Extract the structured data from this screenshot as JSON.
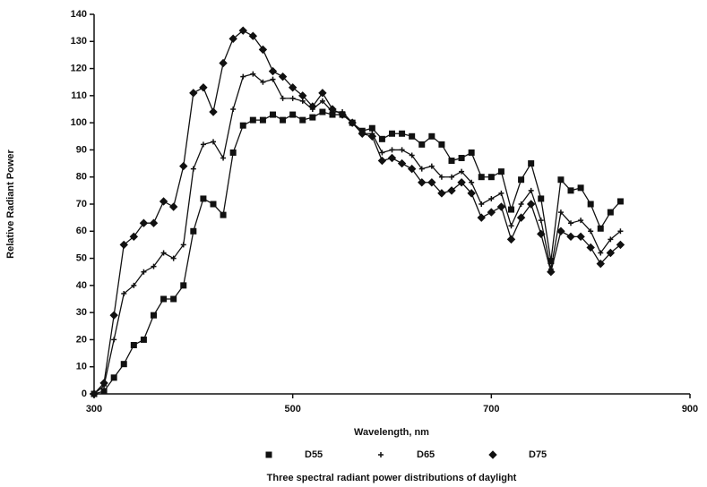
{
  "chart_data": {
    "type": "line",
    "caption": "Three spectral radiant power distributions of daylight",
    "xlabel": "Wavelength, nm",
    "ylabel": "Relative Radiant Power",
    "x": [
      300,
      310,
      320,
      330,
      340,
      350,
      360,
      370,
      380,
      390,
      400,
      410,
      420,
      430,
      440,
      450,
      460,
      470,
      480,
      490,
      500,
      510,
      520,
      530,
      540,
      550,
      560,
      570,
      580,
      590,
      600,
      610,
      620,
      630,
      640,
      650,
      660,
      670,
      680,
      690,
      700,
      710,
      720,
      730,
      740,
      750,
      760,
      770,
      780,
      790,
      800,
      810,
      820,
      830
    ],
    "xlim": [
      300,
      900
    ],
    "xticks": [
      300,
      500,
      700,
      900
    ],
    "ylim": [
      0,
      140
    ],
    "yticks": [
      0,
      10,
      20,
      30,
      40,
      50,
      60,
      70,
      80,
      90,
      100,
      110,
      120,
      130,
      140
    ],
    "series": [
      {
        "name": "D55",
        "marker": "square",
        "color": "#111111",
        "values": [
          0,
          1,
          6,
          11,
          18,
          20,
          29,
          35,
          35,
          40,
          60,
          72,
          70,
          66,
          89,
          99,
          101,
          101,
          103,
          101,
          103,
          101,
          102,
          104,
          103,
          103,
          100,
          97,
          98,
          94,
          96,
          96,
          95,
          92,
          95,
          92,
          86,
          87,
          89,
          80,
          80,
          82,
          68,
          79,
          85,
          72,
          49,
          79,
          75,
          76,
          70,
          61,
          67,
          71
        ]
      },
      {
        "name": "D65",
        "marker": "plus",
        "color": "#111111",
        "values": [
          0,
          3,
          20,
          37,
          40,
          45,
          47,
          52,
          50,
          55,
          83,
          92,
          93,
          87,
          105,
          117,
          118,
          115,
          116,
          109,
          109,
          108,
          105,
          108,
          104,
          104,
          100,
          96,
          96,
          89,
          90,
          90,
          88,
          83,
          84,
          80,
          80,
          82,
          78,
          70,
          72,
          74,
          62,
          70,
          75,
          64,
          46,
          67,
          63,
          64,
          60,
          52,
          57,
          60
        ]
      },
      {
        "name": "D75",
        "marker": "diamond",
        "color": "#111111",
        "values": [
          0,
          4,
          29,
          55,
          58,
          63,
          63,
          71,
          69,
          84,
          111,
          113,
          104,
          122,
          131,
          134,
          132,
          127,
          119,
          117,
          113,
          110,
          106,
          111,
          105,
          103,
          100,
          96,
          95,
          86,
          87,
          85,
          83,
          78,
          78,
          74,
          75,
          78,
          74,
          65,
          67,
          69,
          57,
          65,
          70,
          59,
          45,
          60,
          58,
          58,
          54,
          48,
          52,
          55
        ]
      }
    ]
  }
}
